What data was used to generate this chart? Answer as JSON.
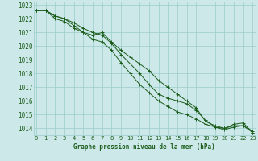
{
  "xlabel": "Graphe pression niveau de la mer (hPa)",
  "ylim": [
    1013.5,
    1023.25
  ],
  "xlim": [
    -0.3,
    23.3
  ],
  "yticks": [
    1014,
    1015,
    1016,
    1017,
    1018,
    1019,
    1020,
    1021,
    1022,
    1023
  ],
  "xticks": [
    0,
    1,
    2,
    3,
    4,
    5,
    6,
    7,
    8,
    9,
    10,
    11,
    12,
    13,
    14,
    15,
    16,
    17,
    18,
    19,
    20,
    21,
    22,
    23
  ],
  "bg_color": "#cce8e8",
  "grid_color": "#99cccc",
  "line_color": "#1a5c1a",
  "line1": [
    1022.6,
    1022.6,
    1022.2,
    1022.0,
    1021.5,
    1021.0,
    1020.8,
    1021.0,
    1020.3,
    1019.7,
    1019.2,
    1018.7,
    1018.2,
    1017.5,
    1017.0,
    1016.5,
    1016.0,
    1015.5,
    1014.5,
    1014.2,
    1014.0,
    1014.3,
    1014.4,
    1013.7
  ],
  "line2": [
    1022.6,
    1022.6,
    1022.2,
    1022.0,
    1021.7,
    1021.3,
    1021.0,
    1020.8,
    1020.2,
    1019.4,
    1018.7,
    1018.0,
    1017.2,
    1016.5,
    1016.2,
    1016.0,
    1015.8,
    1015.3,
    1014.6,
    1014.1,
    1014.0,
    1014.2,
    1014.2,
    1013.8
  ],
  "line3": [
    1022.6,
    1022.6,
    1022.0,
    1021.8,
    1021.3,
    1021.0,
    1020.5,
    1020.3,
    1019.7,
    1018.8,
    1018.0,
    1017.2,
    1016.6,
    1016.0,
    1015.6,
    1015.2,
    1015.0,
    1014.7,
    1014.3,
    1014.1,
    1013.9,
    1014.1,
    1014.2,
    1013.7
  ],
  "marker": "+"
}
